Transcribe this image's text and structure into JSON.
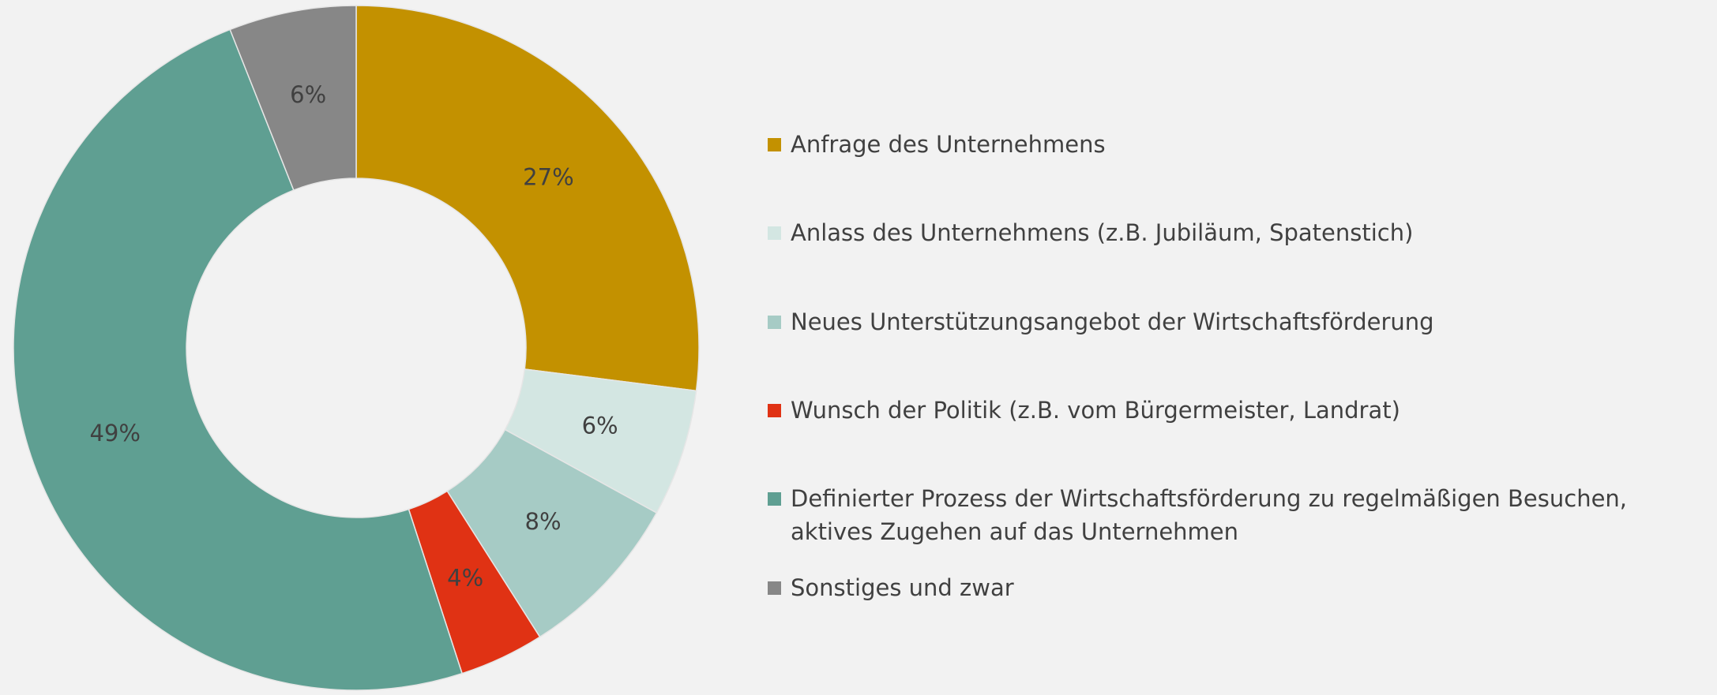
{
  "chart_data": {
    "type": "pie",
    "donut": true,
    "categories": [
      "Anfrage des Unternehmens",
      "Anlass des Unternehmens (z.B. Jubiläum, Spatenstich)",
      "Neues Unterstützungsangebot der Wirtschaftsförderung",
      "Wunsch der Politik (z.B. vom Bürgermeister, Landrat)",
      "Definierter Prozess der Wirtschaftsförderung zu regelmäßigen Besuchen, aktives Zugehen auf das Unternehmen",
      "Sonstiges und zwar"
    ],
    "values": [
      27,
      6,
      8,
      4,
      49,
      6
    ],
    "value_labels": [
      "27%",
      "6%",
      "8%",
      "4%",
      "49%",
      "6%"
    ],
    "colors": [
      "#c39100",
      "#d3e6e2",
      "#a6cbc5",
      "#e03214",
      "#5f9f92",
      "#878787"
    ]
  }
}
